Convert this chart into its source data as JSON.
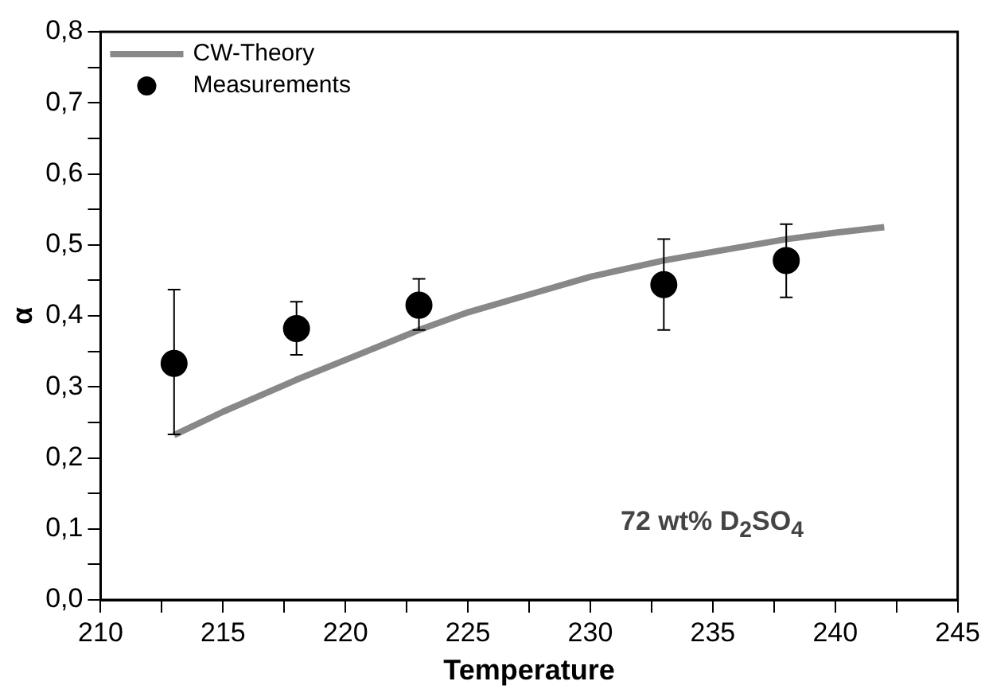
{
  "chart_data": {
    "type": "scatter",
    "xlabel": "Temperature",
    "ylabel": "α",
    "xlim": [
      210,
      245
    ],
    "xticks": [
      210,
      {
        "value": 212.5,
        "label": null
      },
      215,
      {
        "value": 217.5,
        "label": null
      },
      220,
      {
        "value": 222.5,
        "label": null
      },
      225,
      {
        "value": 227.5,
        "label": null
      },
      230,
      {
        "value": 232.5,
        "label": null
      },
      235,
      {
        "value": 237.5,
        "label": null
      },
      240,
      {
        "value": 242.5,
        "label": null
      },
      245
    ],
    "ylim": [
      0,
      0.8
    ],
    "yticks": [
      {
        "value": 0,
        "label": "0,0"
      },
      {
        "value": 0.05,
        "label": null
      },
      {
        "value": 0.1,
        "label": "0,1"
      },
      {
        "value": 0.15,
        "label": null
      },
      {
        "value": 0.2,
        "label": "0,2"
      },
      {
        "value": 0.25,
        "label": null
      },
      {
        "value": 0.3,
        "label": "0,3"
      },
      {
        "value": 0.35,
        "label": null
      },
      {
        "value": 0.4,
        "label": "0,4"
      },
      {
        "value": 0.45,
        "label": null
      },
      {
        "value": 0.5,
        "label": "0,5"
      },
      {
        "value": 0.55,
        "label": null
      },
      {
        "value": 0.6,
        "label": "0,6"
      },
      {
        "value": 0.65,
        "label": null
      },
      {
        "value": 0.7,
        "label": "0,7"
      },
      {
        "value": 0.75,
        "label": null
      },
      {
        "value": 0.8,
        "label": "0,8"
      }
    ],
    "grid": false,
    "legend": "top left",
    "annotations": [
      "72 wt% D$_{2}$SO$_{4}$"
    ],
    "series": [
      {
        "name": "CW-Theory",
        "type": "line",
        "color": "#888888",
        "marker": "none",
        "line_style": "solid",
        "x": [
          213,
          215,
          218,
          220,
          223,
          225,
          228,
          230,
          233,
          235,
          238,
          240,
          242
        ],
        "values": [
          0.232,
          0.265,
          0.31,
          0.338,
          0.38,
          0.405,
          0.435,
          0.455,
          0.478,
          0.49,
          0.508,
          0.517,
          0.525
        ]
      },
      {
        "name": "Measurements",
        "color": "#000000",
        "marker": "circle",
        "x": [
          213,
          218,
          223,
          233,
          238
        ],
        "values": [
          0.333,
          0.382,
          0.415,
          0.444,
          0.478
        ],
        "errors": [
          [
            0.233,
            0.437
          ],
          [
            0.345,
            0.42
          ],
          [
            0.38,
            0.452
          ],
          [
            0.38,
            0.508
          ],
          [
            0.426,
            0.529
          ]
        ]
      }
    ]
  }
}
